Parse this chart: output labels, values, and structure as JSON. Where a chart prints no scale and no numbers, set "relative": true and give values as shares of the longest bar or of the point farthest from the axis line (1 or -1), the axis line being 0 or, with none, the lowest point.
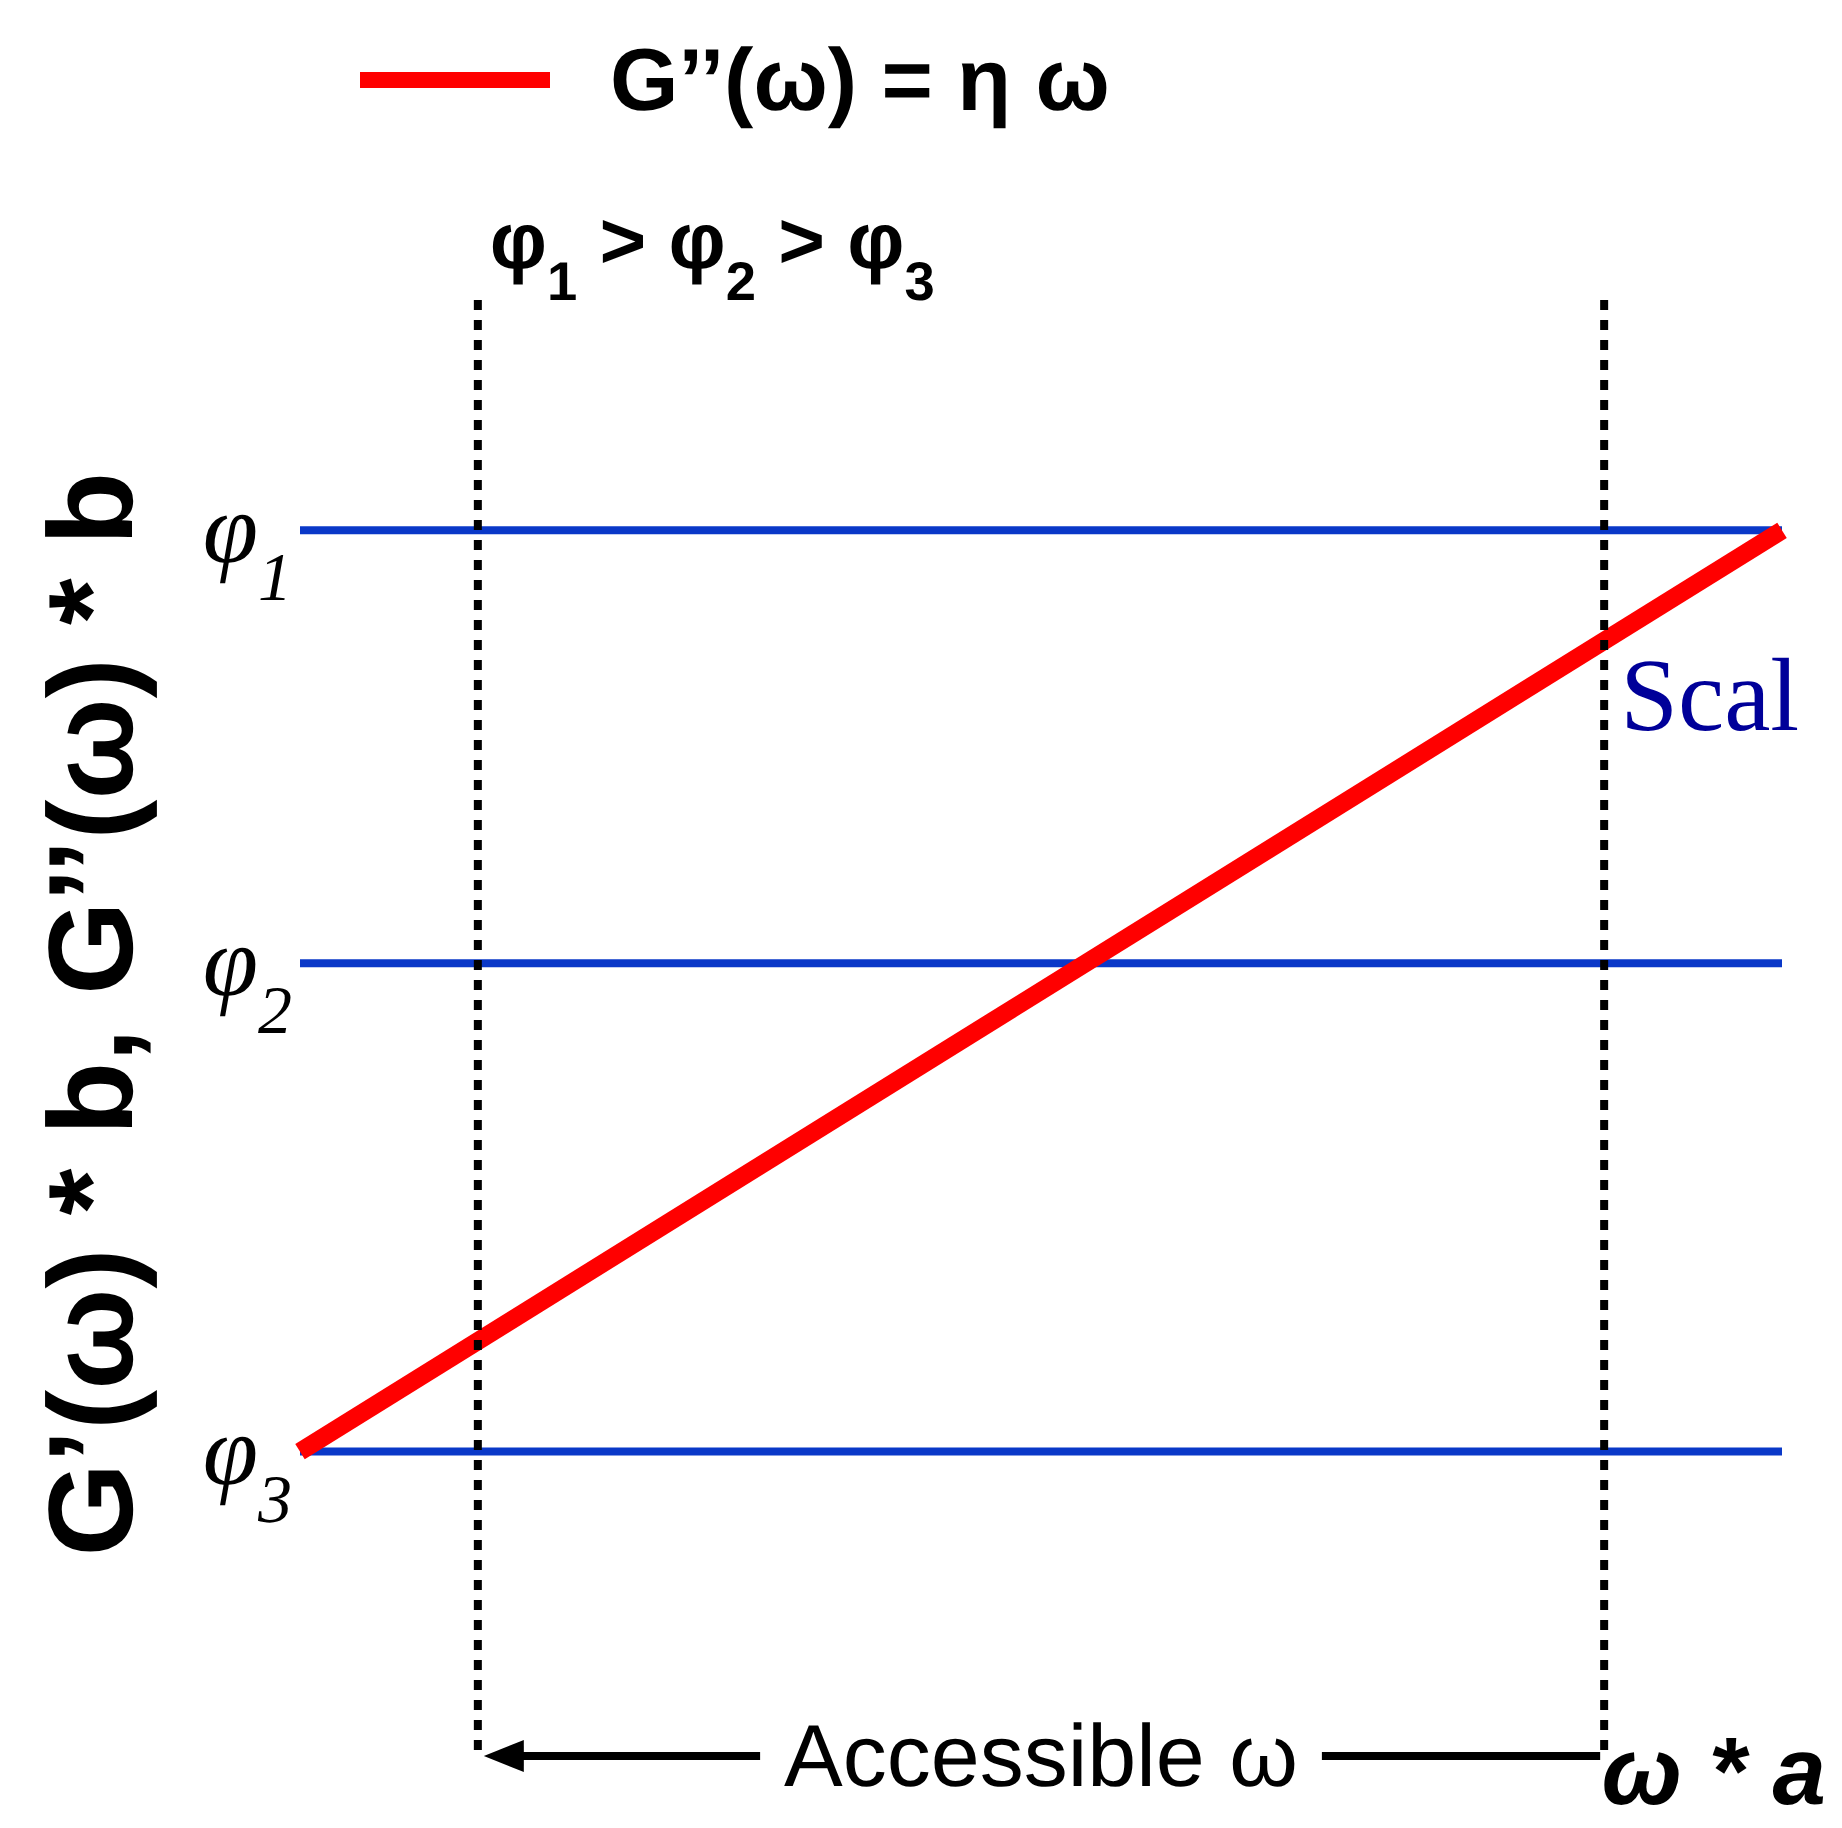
{
  "chart_data": {
    "type": "line",
    "relative": true,
    "xlabel": "ω * a",
    "ylabel": "G’(ω) * b, G’’(ω) * b",
    "categories": [
      null,
      null
    ],
    "series": [
      {
        "name": "G’’(ω) = η ω",
        "color": "#ff0000",
        "values": [
          0,
          1
        ]
      },
      {
        "name": "φ$_{1}$",
        "color": "#0a38c8",
        "values": [
          1,
          1
        ]
      },
      {
        "name": "φ$_{2}$",
        "color": "#0a38c8",
        "values": [
          0.53,
          0.53
        ]
      },
      {
        "name": "φ$_{3}$",
        "color": "#0a38c8",
        "values": [
          0,
          0
        ]
      }
    ],
    "annotations": [
      "φ$_{1}$ > φ$_{2}$ > φ$_{3}$",
      "Accessible ω",
      "Scal"
    ],
    "legend": "top left"
  }
}
